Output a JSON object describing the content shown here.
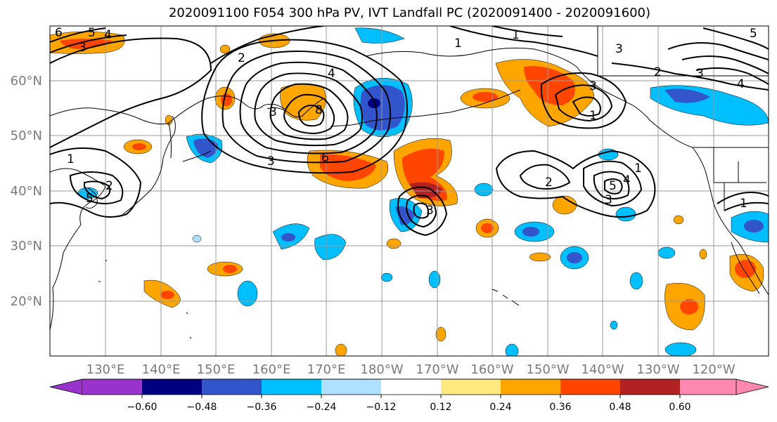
{
  "title": "2020091100 F054 300 hPa PV, IVT Landfall PC (2020091400 - 2020091600)",
  "lat_labels": [
    "60°N",
    "50°N",
    "40°N",
    "30°N",
    "20°N"
  ],
  "lon_labels": [
    "130°E",
    "140°E",
    "150°E",
    "160°E",
    "170°E",
    "180°W",
    "170°W",
    "160°W",
    "150°W",
    "140°W",
    "130°W",
    "120°W"
  ],
  "colorbar": {
    "ticks": [
      "−0.60",
      "−0.48",
      "−0.36",
      "−0.24",
      "−0.12",
      "0.12",
      "0.24",
      "0.36",
      "0.48",
      "0.60"
    ],
    "colors": [
      "#9933cc",
      "#000080",
      "#3355cc",
      "#00bfff",
      "#b0e0ff",
      "#ffffff",
      "#ffea80",
      "#ffa500",
      "#ff4500",
      "#b22222",
      "#ff88b0"
    ]
  },
  "contour_labels": [
    {
      "text": "6"
    },
    {
      "text": "5"
    },
    {
      "text": "4"
    },
    {
      "text": "3"
    },
    {
      "text": "2"
    },
    {
      "text": "1"
    },
    {
      "text": "2"
    },
    {
      "text": "5"
    },
    {
      "text": "4"
    },
    {
      "text": "3"
    },
    {
      "text": "8"
    },
    {
      "text": "6"
    },
    {
      "text": "3"
    },
    {
      "text": "1"
    },
    {
      "text": "1"
    },
    {
      "text": "3"
    },
    {
      "text": "3"
    },
    {
      "text": "2"
    },
    {
      "text": "1"
    },
    {
      "text": "3"
    },
    {
      "text": "4"
    },
    {
      "text": "5"
    },
    {
      "text": "1"
    },
    {
      "text": "2"
    },
    {
      "text": "3"
    },
    {
      "text": "4"
    },
    {
      "text": "5"
    },
    {
      "text": "1"
    },
    {
      "text": "3"
    }
  ]
}
